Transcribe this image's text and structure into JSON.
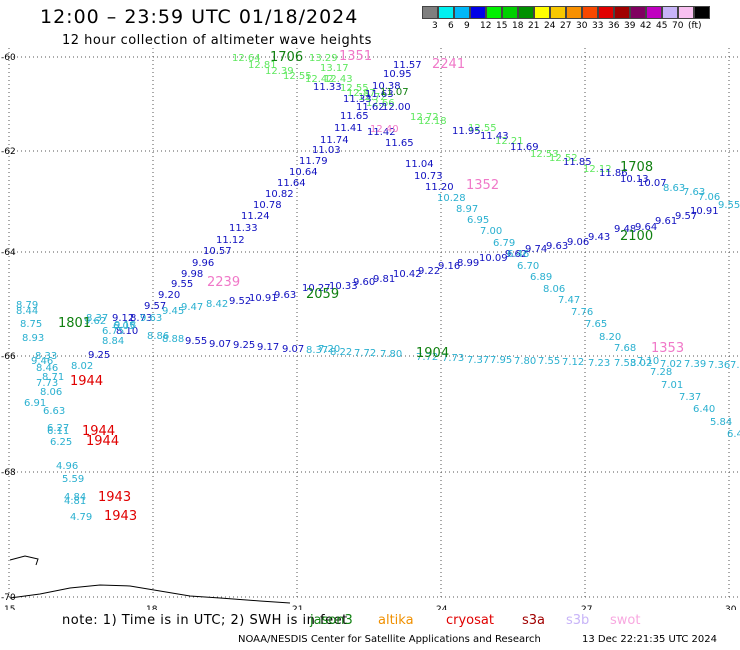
{
  "header": {
    "title": "12:00 – 23:59 UTC 01/18/2024",
    "subtitle": "12 hour collection of altimeter wave heights"
  },
  "legend": {
    "colors": [
      "#7f7f7f",
      "#00f0f0",
      "#00b8f8",
      "#0000e8",
      "#00f000",
      "#00d000",
      "#009000",
      "#ffff00",
      "#f8c800",
      "#f89000",
      "#f84800",
      "#e00000",
      "#a00000",
      "#800060",
      "#c000c0",
      "#c8b4f8",
      "#f8c0f0",
      "#000000"
    ],
    "labels": [
      "3",
      "6",
      "9",
      "12",
      "15",
      "18",
      "21",
      "24",
      "27",
      "30",
      "33",
      "36",
      "39",
      "42",
      "45",
      "70"
    ],
    "unit": "(ft)"
  },
  "map": {
    "lon_ticks": [
      "15",
      "18",
      "21",
      "24",
      "27",
      "30"
    ],
    "lat_ticks": [
      "-60",
      "-62",
      "-64",
      "-66",
      "-68",
      "-70"
    ]
  },
  "tracks": [
    {
      "name": "green-track",
      "color": "#5ee85e",
      "points": [
        [
          "12.64",
          232,
          57
        ],
        [
          "12.81",
          248,
          64
        ],
        [
          "12.39",
          265,
          70
        ],
        [
          "12.55",
          283,
          75
        ],
        [
          "13.29",
          309,
          57
        ],
        [
          "13.17",
          320,
          67
        ],
        [
          "12.42",
          305,
          78
        ],
        [
          "12.43",
          324,
          78
        ],
        [
          "12.55",
          340,
          87
        ],
        [
          "12.87",
          347,
          92
        ],
        [
          "12.72",
          358,
          96
        ],
        [
          "12.66",
          366,
          102
        ],
        [
          "12.72",
          410,
          116
        ],
        [
          "12.18",
          418,
          120
        ],
        [
          "12.55",
          468,
          127
        ],
        [
          "12.21",
          495,
          140
        ],
        [
          "12.53",
          530,
          153
        ],
        [
          "12.52",
          549,
          157
        ],
        [
          "12.12",
          583,
          168
        ]
      ]
    },
    {
      "name": "navy-track-north",
      "color": "#1010c0",
      "points": [
        [
          "11.57",
          393,
          64
        ],
        [
          "10.95",
          383,
          73
        ],
        [
          "10.38",
          372,
          85
        ],
        [
          "11.33",
          313,
          86
        ],
        [
          "11.33",
          343,
          98
        ],
        [
          "11.63",
          365,
          93
        ],
        [
          "11.62",
          356,
          106
        ],
        [
          "12.00",
          382,
          106
        ],
        [
          "11.65",
          340,
          115
        ],
        [
          "11.41",
          334,
          127
        ],
        [
          "11.42",
          367,
          131
        ],
        [
          "11.65",
          385,
          142
        ],
        [
          "11.74",
          320,
          139
        ],
        [
          "11.03",
          312,
          149
        ],
        [
          "11.79",
          299,
          160
        ],
        [
          "10.64",
          289,
          171
        ],
        [
          "11.64",
          277,
          182
        ],
        [
          "10.82",
          265,
          193
        ],
        [
          "10.78",
          253,
          204
        ],
        [
          "11.24",
          241,
          215
        ],
        [
          "11.33",
          229,
          227
        ],
        [
          "11.12",
          216,
          239
        ],
        [
          "10.57",
          203,
          250
        ],
        [
          "9.96",
          192,
          262
        ],
        [
          "9.98",
          181,
          273
        ],
        [
          "9.55",
          171,
          283
        ],
        [
          "9.20",
          158,
          294
        ],
        [
          "9.57",
          144,
          305
        ],
        [
          "9.12",
          112,
          317
        ],
        [
          "8.73",
          130,
          317
        ],
        [
          "8.10",
          116,
          330
        ],
        [
          "11.95",
          452,
          130
        ],
        [
          "11.43",
          480,
          135
        ],
        [
          "11.69",
          510,
          146
        ],
        [
          "11.85",
          563,
          161
        ],
        [
          "11.86",
          599,
          172
        ],
        [
          "10.13",
          620,
          178
        ],
        [
          "10.07",
          638,
          182
        ],
        [
          "11.04",
          405,
          163
        ],
        [
          "10.73",
          414,
          175
        ],
        [
          "11.20",
          425,
          186
        ],
        [
          "10.91",
          690,
          210
        ],
        [
          "9.57",
          675,
          215
        ],
        [
          "9.61",
          655,
          220
        ],
        [
          "9.64",
          635,
          226
        ],
        [
          "9.48",
          614,
          228
        ],
        [
          "9.43",
          588,
          236
        ],
        [
          "9.06",
          567,
          241
        ],
        [
          "9.63",
          546,
          245
        ],
        [
          "9.74",
          525,
          248
        ],
        [
          "9.62",
          505,
          253
        ],
        [
          "10.09",
          479,
          257
        ],
        [
          "8.99",
          457,
          262
        ],
        [
          "9.16",
          438,
          265
        ],
        [
          "9.22",
          418,
          270
        ],
        [
          "10.42",
          393,
          273
        ],
        [
          "9.81",
          373,
          278
        ],
        [
          "9.60",
          353,
          281
        ],
        [
          "10.33",
          329,
          285
        ],
        [
          "10.27",
          302,
          287
        ],
        [
          "9.63",
          274,
          294
        ],
        [
          "10.91",
          249,
          297
        ],
        [
          "9.52",
          229,
          300
        ]
      ]
    },
    {
      "name": "navy-track-south",
      "color": "#1010c0",
      "points": [
        [
          "9.25",
          88,
          354
        ],
        [
          "9.55",
          185,
          340
        ],
        [
          "9.07",
          209,
          343
        ],
        [
          "9.25",
          233,
          344
        ],
        [
          "9.17",
          257,
          346
        ],
        [
          "9.07",
          282,
          348
        ]
      ]
    },
    {
      "name": "teal-track",
      "color": "#2ab0d0",
      "points": [
        [
          "7.20",
          318,
          348
        ],
        [
          "8.37",
          306,
          349
        ],
        [
          "8.22",
          330,
          351
        ],
        [
          "7.72",
          354,
          352
        ],
        [
          "7.80",
          380,
          353
        ],
        [
          "7.72",
          416,
          356
        ],
        [
          "7.73",
          442,
          357
        ],
        [
          "7.37",
          467,
          359
        ],
        [
          "7.95",
          490,
          359
        ],
        [
          "7.80",
          514,
          360
        ],
        [
          "7.55",
          538,
          360
        ],
        [
          "7.12",
          562,
          361
        ],
        [
          "7.23",
          588,
          362
        ],
        [
          "7.53",
          614,
          362
        ],
        [
          "8.02",
          630,
          362
        ],
        [
          "7.02",
          660,
          363
        ],
        [
          "7.39",
          684,
          363
        ],
        [
          "7.36",
          708,
          364
        ],
        [
          "7.0",
          730,
          364
        ],
        [
          "10.28",
          437,
          197
        ],
        [
          "8.97",
          456,
          208
        ],
        [
          "6.95",
          467,
          219
        ],
        [
          "7.00",
          480,
          230
        ],
        [
          "6.79",
          493,
          242
        ],
        [
          "6.46",
          507,
          253
        ],
        [
          "6.70",
          517,
          265
        ],
        [
          "6.89",
          530,
          276
        ],
        [
          "8.06",
          543,
          288
        ],
        [
          "7.47",
          558,
          299
        ],
        [
          "7.76",
          571,
          311
        ],
        [
          "7.65",
          585,
          323
        ],
        [
          "8.20",
          599,
          336
        ],
        [
          "7.68",
          614,
          347
        ],
        [
          "7.10",
          637,
          360
        ],
        [
          "7.28",
          650,
          371
        ],
        [
          "7.01",
          661,
          384
        ],
        [
          "7.37",
          679,
          396
        ],
        [
          "6.40",
          693,
          408
        ],
        [
          "5.84",
          710,
          421
        ],
        [
          "6.4",
          727,
          433
        ],
        [
          "8.63",
          663,
          187
        ],
        [
          "7.63",
          683,
          191
        ],
        [
          "7.06",
          698,
          196
        ],
        [
          "9.55",
          718,
          204
        ],
        [
          "8.79",
          16,
          304
        ],
        [
          "8.44",
          16,
          310
        ],
        [
          "8.75",
          20,
          323
        ],
        [
          "8.93",
          22,
          337
        ],
        [
          "8.33",
          35,
          355
        ],
        [
          "9.46",
          31,
          360
        ],
        [
          "8.46",
          36,
          367
        ],
        [
          "8.71",
          42,
          376
        ],
        [
          "7.73",
          36,
          382
        ],
        [
          "8.06",
          40,
          391
        ],
        [
          "6.91",
          24,
          402
        ],
        [
          "6.63",
          43,
          410
        ],
        [
          "6.27",
          47,
          427
        ],
        [
          "6.11",
          47,
          430
        ],
        [
          "6.25",
          50,
          441
        ],
        [
          "4.96",
          56,
          465
        ],
        [
          "5.59",
          62,
          478
        ],
        [
          "4.84",
          64,
          496
        ],
        [
          "4.81",
          64,
          500
        ],
        [
          "4.79",
          70,
          516
        ],
        [
          "8.02",
          71,
          365
        ],
        [
          "8.84",
          102,
          340
        ],
        [
          "8.42",
          206,
          303
        ],
        [
          "9.47",
          181,
          306
        ],
        [
          "9.45",
          162,
          310
        ],
        [
          "8.86",
          147,
          335
        ],
        [
          "8.88",
          162,
          338
        ],
        [
          "6.05",
          113,
          325
        ],
        [
          "6.75",
          102,
          330
        ],
        [
          "9.63",
          140,
          317
        ],
        [
          "9.18",
          114,
          324
        ],
        [
          "9.62",
          84,
          320
        ],
        [
          "8.37",
          86,
          317
        ]
      ]
    },
    {
      "name": "green-dark-track",
      "color": "#108010",
      "points": [
        [
          "1706",
          270,
          57
        ],
        [
          "11.07",
          380,
          91
        ],
        [
          "1708",
          620,
          167
        ],
        [
          "2100",
          620,
          236
        ],
        [
          "2059",
          306,
          294
        ],
        [
          "1904",
          416,
          353
        ],
        [
          "1801",
          58,
          323
        ]
      ]
    },
    {
      "name": "pink-labels",
      "color": "#f078c8",
      "points": [
        [
          "1351",
          339,
          56
        ],
        [
          "2241",
          432,
          64
        ],
        [
          "1352",
          466,
          185
        ],
        [
          "2239",
          207,
          282
        ],
        [
          "1353",
          651,
          348
        ],
        [
          "12.40",
          370,
          128
        ]
      ]
    },
    {
      "name": "red-labels",
      "color": "#e00000",
      "points": [
        [
          "1944",
          70,
          381
        ],
        [
          "1944",
          82,
          431
        ],
        [
          "1944",
          86,
          441
        ],
        [
          "1943",
          98,
          497
        ],
        [
          "1943",
          104,
          516
        ]
      ]
    }
  ],
  "footer": {
    "note": "note: 1) Time is in UTC; 2) SWH is in feet",
    "satellites": [
      {
        "name": "jason3",
        "color": "#108010"
      },
      {
        "name": "altika",
        "color": "#f09000"
      },
      {
        "name": "cryosat",
        "color": "#e00000"
      },
      {
        "name": "s3a",
        "color": "#a00000"
      },
      {
        "name": "s3b",
        "color": "#c8b4f8"
      },
      {
        "name": "swot",
        "color": "#f8a8e0"
      }
    ],
    "credit": "NOAA/NESDIS Center for Satellite Applications and Research",
    "timestamp": "13 Dec 22:21:35 UTC 2024"
  }
}
